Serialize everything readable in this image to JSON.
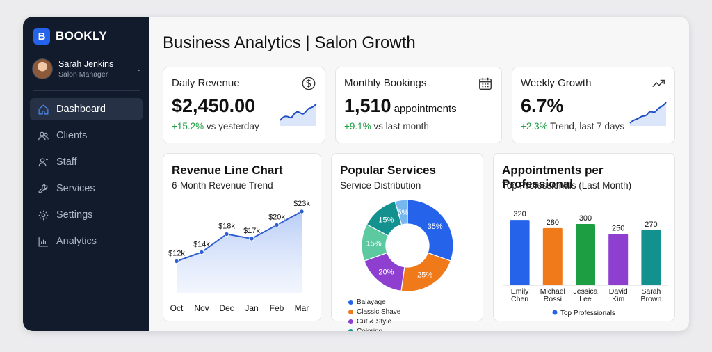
{
  "sidebar": {
    "brand": "BOOKLY",
    "brand_logo": "B",
    "user": {
      "name": "Sarah Jenkins",
      "role": "Salon Manager"
    },
    "items": [
      {
        "label": "Dashboard",
        "icon": "home-icon"
      },
      {
        "label": "Clients",
        "icon": "users-icon"
      },
      {
        "label": "Staff",
        "icon": "user-icon"
      },
      {
        "label": "Services",
        "icon": "wrench-icon"
      },
      {
        "label": "Settings",
        "icon": "gear-icon"
      },
      {
        "label": "Analytics",
        "icon": "bar-chart-icon"
      }
    ]
  },
  "header": {
    "title": "Business Analytics | Salon Growth"
  },
  "kpis": {
    "revenue": {
      "title": "Daily Revenue",
      "value": "$2,450.00",
      "change": "+15.2%",
      "change_text": " vs yesterday",
      "icon": "dollar-icon"
    },
    "bookings": {
      "title": "Monthly Bookings",
      "value": "1,510",
      "unit": "appointments",
      "change": "+9.1%",
      "change_text": " vs last month",
      "icon": "calendar-icon"
    },
    "growth": {
      "title": "Weekly Growth",
      "value": "6.7%",
      "change": "+2.3%",
      "change_text": " Trend, last 7 days",
      "icon": "trend-up-icon"
    }
  },
  "colors": {
    "accent": "#2563eb",
    "positive": "#1e9e43",
    "sidebar": "#121b2c"
  },
  "chart_data": [
    {
      "type": "line",
      "title": "Revenue Line Chart",
      "subtitle": "6-Month Revenue Trend",
      "categories": [
        "Oct",
        "Nov",
        "Dec",
        "Jan",
        "Feb",
        "Mar"
      ],
      "values": [
        12,
        14,
        18,
        17,
        20,
        23
      ],
      "labels": [
        "$12k",
        "$14k",
        "$18k",
        "$17k",
        "$20k",
        "$23k"
      ],
      "ylim": [
        5,
        25
      ]
    },
    {
      "type": "pie",
      "title": "Popular Services",
      "subtitle": "Service Distribution",
      "slices": [
        {
          "label": "35%",
          "value": 35,
          "color": "#2563eb"
        },
        {
          "label": "25%",
          "value": 25,
          "color": "#f07a1a"
        },
        {
          "label": "20%",
          "value": 20,
          "color": "#8e3fd0"
        },
        {
          "label": "15%",
          "value": 15,
          "color": "#5cc9a0"
        },
        {
          "label": "15%",
          "value": 15,
          "color": "#13918f"
        },
        {
          "label": "5%",
          "value": 5,
          "color": "#76b7ef"
        }
      ],
      "legend": [
        {
          "name": "Balayage",
          "color": "#2563eb"
        },
        {
          "name": "Classic Shave",
          "color": "#f07a1a"
        },
        {
          "name": "Cut & Style",
          "color": "#8e3fd0"
        },
        {
          "name": "Coloring",
          "color": "#13918f"
        }
      ]
    },
    {
      "type": "bar",
      "title": "Appointments per Professional",
      "subtitle": "Top Professionals (Last Month)",
      "categories": [
        "Emily Chen",
        "Michael Rossi",
        "Jessica Lee",
        "David Kim",
        "Sarah Brown"
      ],
      "category_lines": [
        [
          "Emily",
          "Chen"
        ],
        [
          "Michael",
          "Rossi"
        ],
        [
          "Jessica",
          "Lee"
        ],
        [
          "David",
          "Kim"
        ],
        [
          "Sarah",
          "Brown"
        ]
      ],
      "values": [
        320,
        280,
        300,
        250,
        270
      ],
      "colors": [
        "#2563eb",
        "#f07a1a",
        "#1e9e43",
        "#8e3fd0",
        "#13918f"
      ],
      "legend": "Top Professionals",
      "legend_color": "#2563eb",
      "ylim": [
        0,
        340
      ]
    }
  ]
}
